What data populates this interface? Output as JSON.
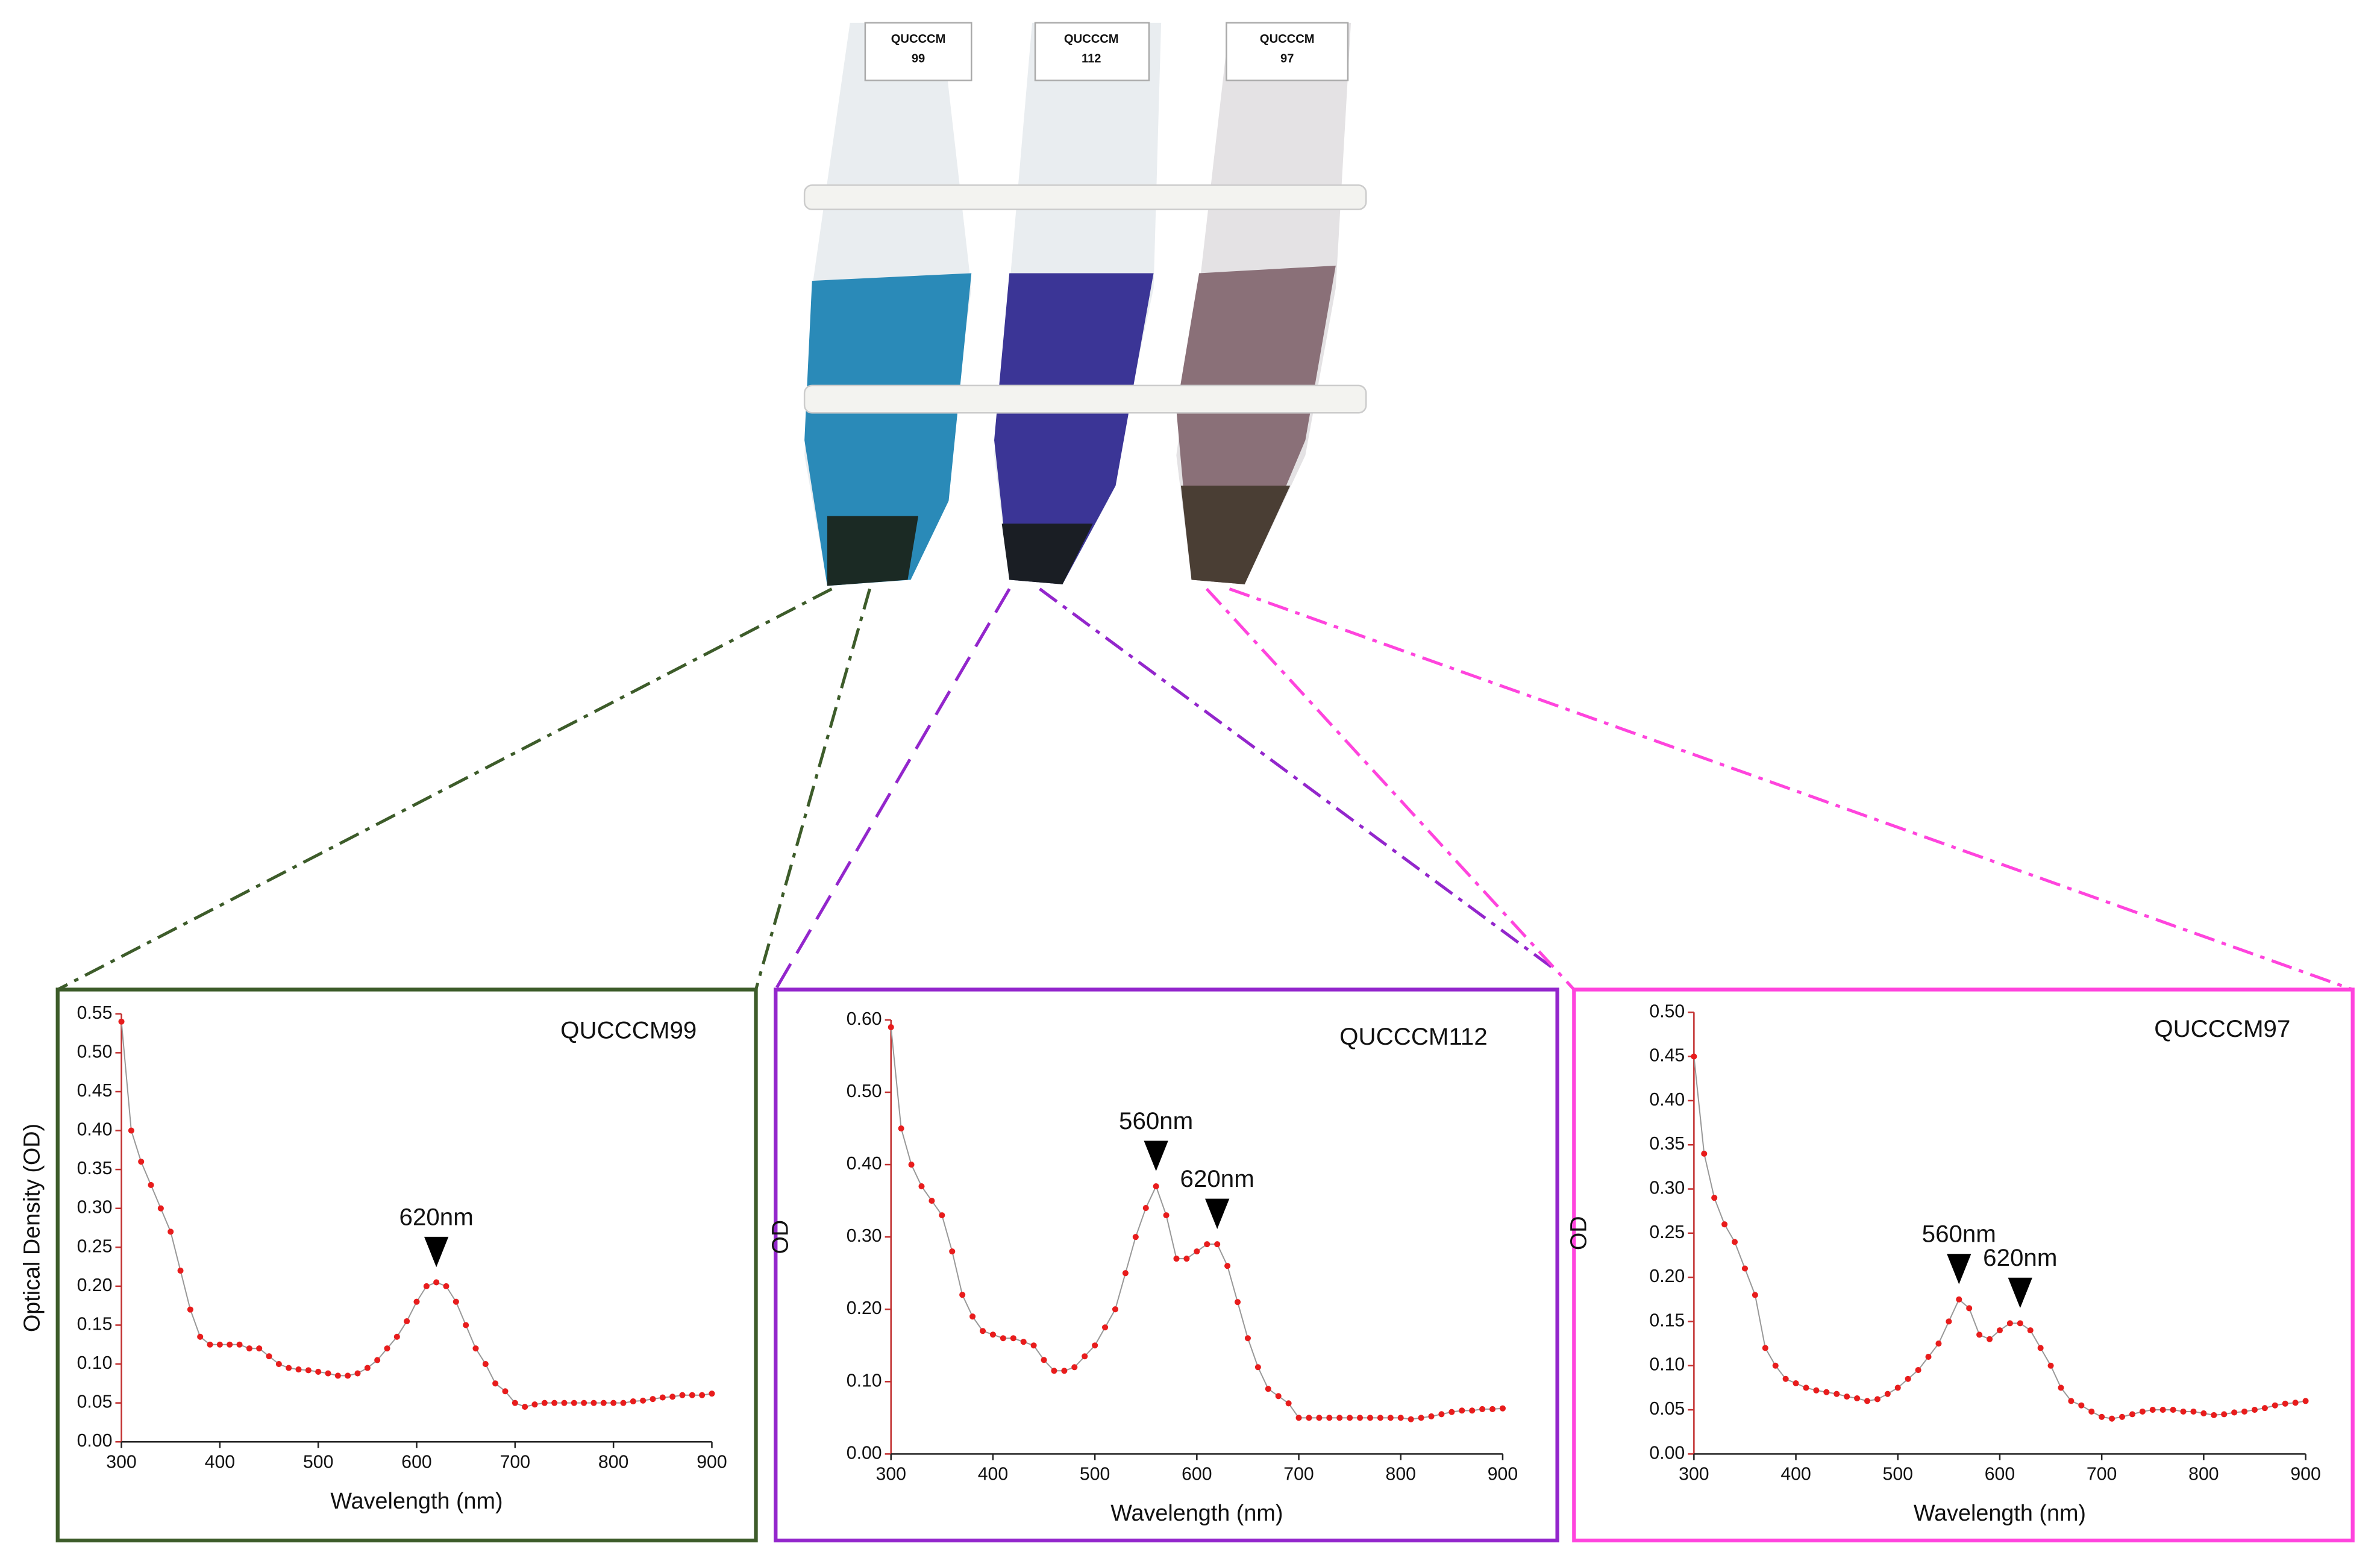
{
  "photo": {
    "tube_labels": [
      [
        "QUCCCM",
        "99"
      ],
      [
        "QUCCCM",
        "112"
      ],
      [
        "QUCCCM",
        "97"
      ]
    ]
  },
  "chart_data": [
    {
      "type": "line",
      "title": "QUCCCM99",
      "x_label": "Wavelength (nm)",
      "y_label": "Optical Density (OD)",
      "frame_color": "#3d5c2a",
      "x": [
        300,
        310,
        320,
        330,
        340,
        350,
        360,
        370,
        380,
        390,
        400,
        410,
        420,
        430,
        440,
        450,
        460,
        470,
        480,
        490,
        500,
        510,
        520,
        530,
        540,
        550,
        560,
        570,
        580,
        590,
        600,
        610,
        620,
        630,
        640,
        650,
        660,
        670,
        680,
        690,
        700,
        710,
        720,
        730,
        740,
        750,
        760,
        770,
        780,
        790,
        800,
        810,
        820,
        830,
        840,
        850,
        860,
        870,
        880,
        890,
        900
      ],
      "series": [
        {
          "color": "#e81c1c",
          "values": [
            0.54,
            0.4,
            0.36,
            0.33,
            0.3,
            0.27,
            0.22,
            0.17,
            0.135,
            0.125,
            0.125,
            0.125,
            0.125,
            0.12,
            0.12,
            0.11,
            0.1,
            0.095,
            0.093,
            0.092,
            0.09,
            0.088,
            0.085,
            0.085,
            0.088,
            0.095,
            0.105,
            0.12,
            0.135,
            0.155,
            0.18,
            0.2,
            0.205,
            0.2,
            0.18,
            0.15,
            0.12,
            0.1,
            0.075,
            0.065,
            0.05,
            0.045,
            0.048,
            0.05,
            0.05,
            0.05,
            0.05,
            0.05,
            0.05,
            0.05,
            0.05,
            0.05,
            0.052,
            0.053,
            0.055,
            0.057,
            0.058,
            0.06,
            0.06,
            0.06,
            0.062
          ]
        }
      ],
      "annotations": [
        {
          "label": "620nm",
          "x": 620
        }
      ],
      "xlim": [
        300,
        900
      ],
      "xticks": [
        300,
        400,
        500,
        600,
        700,
        800,
        900
      ],
      "ylim": [
        0,
        0.55
      ],
      "yticks": [
        {
          "value": 0,
          "label": "0.00"
        },
        {
          "value": 0.05,
          "label": "0.05"
        },
        {
          "value": 0.1,
          "label": "0.10"
        },
        {
          "value": 0.15,
          "label": "0.15"
        },
        {
          "value": 0.2,
          "label": "0.20"
        },
        {
          "value": 0.25,
          "label": "0.25"
        },
        {
          "value": 0.3,
          "label": "0.30"
        },
        {
          "value": 0.35,
          "label": "0.35"
        },
        {
          "value": 0.4,
          "label": "0.40"
        },
        {
          "value": 0.45,
          "label": "0.45"
        },
        {
          "value": 0.5,
          "label": "0.50"
        },
        {
          "value": 0.55,
          "label": "0.55"
        }
      ]
    },
    {
      "type": "line",
      "title": "QUCCCM112",
      "x_label": "Wavelength (nm)",
      "y_label": "OD",
      "frame_color": "#9326cc",
      "x": [
        300,
        310,
        320,
        330,
        340,
        350,
        360,
        370,
        380,
        390,
        400,
        410,
        420,
        430,
        440,
        450,
        460,
        470,
        480,
        490,
        500,
        510,
        520,
        530,
        540,
        550,
        560,
        570,
        580,
        590,
        600,
        610,
        620,
        630,
        640,
        650,
        660,
        670,
        680,
        690,
        700,
        710,
        720,
        730,
        740,
        750,
        760,
        770,
        780,
        790,
        800,
        810,
        820,
        830,
        840,
        850,
        860,
        870,
        880,
        890,
        900
      ],
      "series": [
        {
          "color": "#e81c1c",
          "values": [
            0.59,
            0.45,
            0.4,
            0.37,
            0.35,
            0.33,
            0.28,
            0.22,
            0.19,
            0.17,
            0.165,
            0.16,
            0.16,
            0.155,
            0.15,
            0.13,
            0.115,
            0.115,
            0.12,
            0.135,
            0.15,
            0.175,
            0.2,
            0.25,
            0.3,
            0.34,
            0.37,
            0.33,
            0.27,
            0.27,
            0.28,
            0.29,
            0.29,
            0.26,
            0.21,
            0.16,
            0.12,
            0.09,
            0.08,
            0.07,
            0.05,
            0.05,
            0.05,
            0.05,
            0.05,
            0.05,
            0.05,
            0.05,
            0.05,
            0.05,
            0.05,
            0.048,
            0.05,
            0.052,
            0.055,
            0.058,
            0.06,
            0.06,
            0.062,
            0.062,
            0.063
          ]
        }
      ],
      "annotations": [
        {
          "label": "560nm",
          "x": 560
        },
        {
          "label": "620nm",
          "x": 620
        }
      ],
      "xlim": [
        300,
        900
      ],
      "xticks": [
        300,
        400,
        500,
        600,
        700,
        800,
        900
      ],
      "ylim": [
        0,
        0.6
      ],
      "yticks": [
        {
          "value": 0,
          "label": "0.00"
        },
        {
          "value": 0.1,
          "label": "0.10"
        },
        {
          "value": 0.2,
          "label": "0.20"
        },
        {
          "value": 0.3,
          "label": "0.30"
        },
        {
          "value": 0.4,
          "label": "0.40"
        },
        {
          "value": 0.5,
          "label": "0.50"
        },
        {
          "value": 0.6,
          "label": "0.60"
        }
      ]
    },
    {
      "type": "line",
      "title": "QUCCCM97",
      "x_label": "Wavelength (nm)",
      "y_label": "OD",
      "frame_color": "#ff44dd",
      "x": [
        300,
        310,
        320,
        330,
        340,
        350,
        360,
        370,
        380,
        390,
        400,
        410,
        420,
        430,
        440,
        450,
        460,
        470,
        480,
        490,
        500,
        510,
        520,
        530,
        540,
        550,
        560,
        570,
        580,
        590,
        600,
        610,
        620,
        630,
        640,
        650,
        660,
        670,
        680,
        690,
        700,
        710,
        720,
        730,
        740,
        750,
        760,
        770,
        780,
        790,
        800,
        810,
        820,
        830,
        840,
        850,
        860,
        870,
        880,
        890,
        900
      ],
      "series": [
        {
          "color": "#e81c1c",
          "values": [
            0.45,
            0.34,
            0.29,
            0.26,
            0.24,
            0.21,
            0.18,
            0.12,
            0.1,
            0.085,
            0.08,
            0.075,
            0.072,
            0.07,
            0.068,
            0.065,
            0.063,
            0.06,
            0.062,
            0.068,
            0.075,
            0.085,
            0.095,
            0.11,
            0.125,
            0.15,
            0.175,
            0.165,
            0.135,
            0.13,
            0.14,
            0.148,
            0.148,
            0.14,
            0.12,
            0.1,
            0.075,
            0.06,
            0.055,
            0.048,
            0.042,
            0.04,
            0.042,
            0.045,
            0.048,
            0.05,
            0.05,
            0.05,
            0.048,
            0.048,
            0.046,
            0.044,
            0.045,
            0.047,
            0.048,
            0.05,
            0.052,
            0.055,
            0.057,
            0.058,
            0.06
          ]
        }
      ],
      "annotations": [
        {
          "label": "560nm",
          "x": 560
        },
        {
          "label": "620nm",
          "x": 620
        }
      ],
      "xlim": [
        300,
        900
      ],
      "xticks": [
        300,
        400,
        500,
        600,
        700,
        800,
        900
      ],
      "ylim": [
        0,
        0.5
      ],
      "yticks": [
        {
          "value": 0,
          "label": "0.00"
        },
        {
          "value": 0.05,
          "label": "0.05"
        },
        {
          "value": 0.1,
          "label": "0.10"
        },
        {
          "value": 0.15,
          "label": "0.15"
        },
        {
          "value": 0.2,
          "label": "0.20"
        },
        {
          "value": 0.25,
          "label": "0.25"
        },
        {
          "value": 0.3,
          "label": "0.30"
        },
        {
          "value": 0.35,
          "label": "0.35"
        },
        {
          "value": 0.4,
          "label": "0.40"
        },
        {
          "value": 0.45,
          "label": "0.45"
        },
        {
          "value": 0.5,
          "label": "0.50"
        }
      ]
    }
  ]
}
